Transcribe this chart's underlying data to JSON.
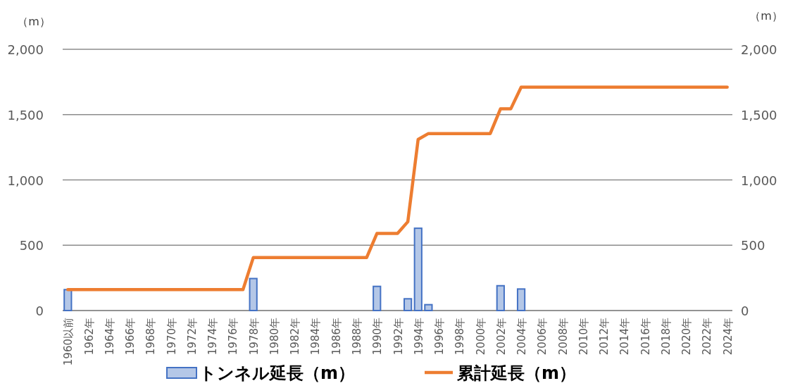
{
  "chart_data": {
    "type": "bar",
    "ylabel": "（m）",
    "y2label": "（m）",
    "categories": [
      "1960以前",
      null,
      "1962年",
      null,
      "1964年",
      null,
      "1966年",
      null,
      "1968年",
      null,
      "1970年",
      null,
      "1972年",
      null,
      "1974年",
      null,
      "1976年",
      null,
      "1978年",
      null,
      "1980年",
      null,
      "1982年",
      null,
      "1984年",
      null,
      "1986年",
      null,
      "1988年",
      null,
      "1990年",
      null,
      "1992年",
      null,
      "1994年",
      null,
      "1996年",
      null,
      "1998年",
      null,
      "2000年",
      null,
      "2002年",
      null,
      "2004年",
      null,
      "2006年",
      null,
      "2008年",
      null,
      "2010年",
      null,
      "2012年",
      null,
      "2014年",
      null,
      "2016年",
      null,
      "2018年",
      null,
      "2020年",
      null,
      "2022年",
      null,
      "2024年"
    ],
    "series": [
      {
        "name": "トンネル延長（m）",
        "color": "#b4c7e7",
        "values": [
          160,
          null,
          null,
          null,
          null,
          null,
          null,
          null,
          null,
          null,
          null,
          null,
          null,
          null,
          null,
          null,
          null,
          null,
          245,
          null,
          null,
          null,
          null,
          null,
          null,
          null,
          null,
          null,
          null,
          null,
          185,
          null,
          null,
          90,
          630,
          45,
          null,
          null,
          null,
          null,
          null,
          null,
          190,
          null,
          165,
          null,
          null,
          null,
          null,
          null,
          null,
          null,
          null,
          null,
          null,
          null,
          null,
          null,
          null,
          null,
          null,
          null,
          null,
          null,
          null
        ]
      },
      {
        "name": "累計延長（m）",
        "type": "line",
        "axis": "y2",
        "color": "#ed7d31",
        "values": [
          160,
          160,
          160,
          160,
          160,
          160,
          160,
          160,
          160,
          160,
          160,
          160,
          160,
          160,
          160,
          160,
          160,
          160,
          405,
          405,
          405,
          405,
          405,
          405,
          405,
          405,
          405,
          405,
          405,
          405,
          590,
          590,
          590,
          680,
          1310,
          1355,
          1355,
          1355,
          1355,
          1355,
          1355,
          1355,
          1545,
          1545,
          1710,
          1710,
          1710,
          1710,
          1710,
          1710,
          1710,
          1710,
          1710,
          1710,
          1710,
          1710,
          1710,
          1710,
          1710,
          1710,
          1710,
          1710,
          1710,
          1710,
          1710
        ]
      }
    ],
    "ylim": [
      0,
      2000
    ],
    "yticks": [
      0,
      500,
      {
        "value": 1000,
        "label": "1,000"
      },
      {
        "value": 1500,
        "label": "1,500"
      },
      {
        "value": 2000,
        "label": "2,000"
      }
    ],
    "y2lim": [
      0,
      2000
    ],
    "y2ticks": [
      0,
      500,
      {
        "value": 1000,
        "label": "1,000"
      },
      {
        "value": 1500,
        "label": "1,500"
      },
      {
        "value": 2000,
        "label": "2,000"
      }
    ],
    "grid": "y",
    "legend": "bottom",
    "marker": "none",
    "line_style": "solid"
  }
}
